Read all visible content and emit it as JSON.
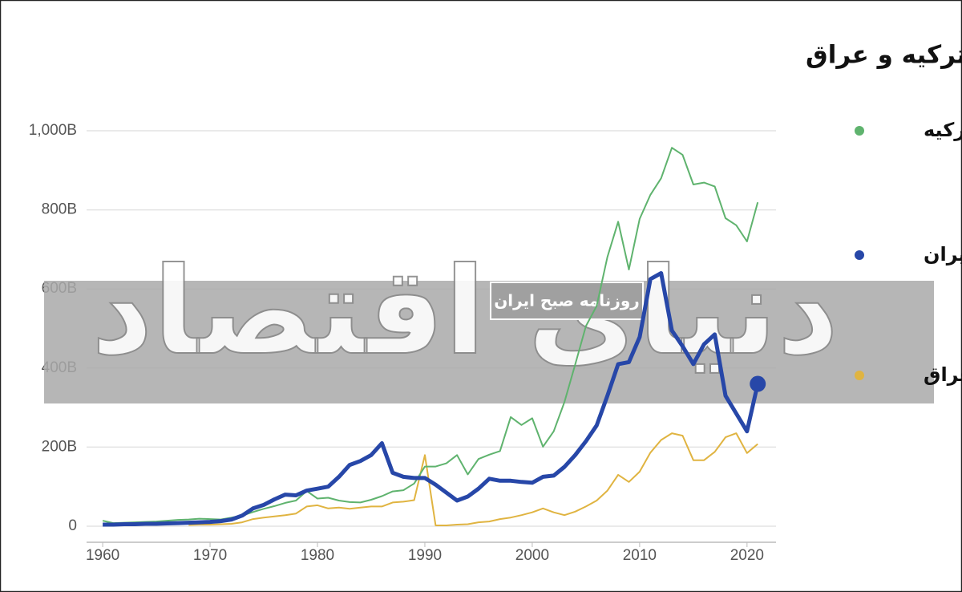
{
  "chart_data": {
    "type": "line",
    "title": "تغییرات تولید ناخالص داخلی ایران، ترکیه و عراق",
    "x": [
      1960,
      1961,
      1962,
      1963,
      1964,
      1965,
      1966,
      1967,
      1968,
      1969,
      1970,
      1971,
      1972,
      1973,
      1974,
      1975,
      1976,
      1977,
      1978,
      1979,
      1980,
      1981,
      1982,
      1983,
      1984,
      1985,
      1986,
      1987,
      1988,
      1989,
      1990,
      1991,
      1992,
      1993,
      1994,
      1995,
      1996,
      1997,
      1998,
      1999,
      2000,
      2001,
      2002,
      2003,
      2004,
      2005,
      2006,
      2007,
      2008,
      2009,
      2010,
      2011,
      2012,
      2013,
      2014,
      2015,
      2016,
      2017,
      2018,
      2019,
      2020,
      2021
    ],
    "series": [
      {
        "name": "ترکیه",
        "color": "#5fb36e",
        "values": [
          14,
          8,
          9,
          10,
          11,
          12,
          14,
          16,
          17,
          19,
          18,
          17,
          22,
          27,
          36,
          44,
          51,
          59,
          65,
          89,
          70,
          72,
          65,
          61,
          60,
          67,
          76,
          88,
          91,
          108,
          151,
          151,
          159,
          180,
          131,
          170,
          181,
          190,
          276,
          256,
          273,
          201,
          240,
          314,
          409,
          506,
          557,
          681,
          770,
          649,
          777,
          838,
          880,
          957,
          939,
          864,
          869,
          859,
          779,
          761,
          720,
          819
        ]
      },
      {
        "name": "ایران",
        "color": "#2747a8",
        "values": [
          4,
          4,
          5,
          5,
          6,
          6,
          7,
          8,
          9,
          10,
          11,
          13,
          17,
          27,
          45,
          54,
          68,
          80,
          78,
          90,
          95,
          100,
          125,
          155,
          165,
          180,
          210,
          135,
          125,
          122,
          122,
          105,
          85,
          65,
          75,
          95,
          120,
          115,
          115,
          112,
          110,
          125,
          128,
          150,
          180,
          215,
          255,
          330,
          410,
          415,
          478,
          625,
          640,
          495,
          455,
          410,
          460,
          485,
          330,
          285,
          240,
          360
        ]
      },
      {
        "name": "عراق",
        "color": "#e0b441",
        "values": [
          null,
          null,
          null,
          null,
          null,
          null,
          null,
          null,
          3,
          4,
          4,
          5,
          6,
          10,
          18,
          22,
          25,
          28,
          32,
          50,
          53,
          45,
          47,
          44,
          47,
          50,
          50,
          60,
          62,
          66,
          180,
          2,
          2,
          4,
          5,
          10,
          12,
          18,
          22,
          28,
          35,
          45,
          35,
          28,
          37,
          50,
          65,
          90,
          130,
          112,
          138,
          186,
          218,
          235,
          229,
          167,
          167,
          188,
          225,
          235,
          185,
          208
        ]
      }
    ],
    "xlim": [
      1958.5,
      2022.7
    ],
    "xticks": [
      1960,
      1970,
      1980,
      1990,
      2000,
      2010,
      2020
    ],
    "ylim": [
      0,
      1000
    ],
    "yticks": [
      0,
      {
        "value": 200,
        "label": "200B"
      },
      {
        "value": 400,
        "label": "400B"
      },
      {
        "value": 600,
        "label": "600B"
      },
      {
        "value": 800,
        "label": "800B"
      },
      {
        "value": 1000,
        "label": "1,000B"
      }
    ],
    "grid": true,
    "legend": "right"
  },
  "watermark": {
    "brand": "دنیای اقتصاد",
    "subtitle": "روزنامه صبح ایران"
  }
}
